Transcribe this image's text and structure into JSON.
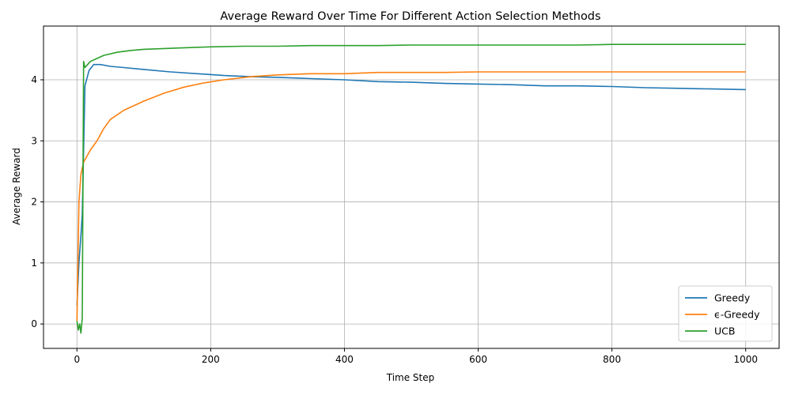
{
  "chart_data": {
    "type": "line",
    "title": "Average Reward Over Time For Different Action Selection Methods",
    "xlabel": "Time Step",
    "ylabel": "Average Reward",
    "xlim": [
      -50,
      1050
    ],
    "ylim": [
      -0.4,
      4.88
    ],
    "xticks": [
      0,
      200,
      400,
      600,
      800,
      1000
    ],
    "yticks": [
      0,
      1,
      2,
      3,
      4
    ],
    "grid": true,
    "legend_position": "lower right",
    "series": [
      {
        "name": "Greedy",
        "color": "#1f77b4",
        "x": [
          0,
          3,
          6,
          8,
          12,
          18,
          25,
          35,
          50,
          70,
          100,
          140,
          180,
          220,
          260,
          300,
          350,
          400,
          450,
          500,
          550,
          600,
          650,
          700,
          750,
          800,
          850,
          900,
          950,
          1000
        ],
        "y": [
          0.3,
          1.0,
          1.45,
          1.8,
          3.9,
          4.15,
          4.25,
          4.25,
          4.22,
          4.2,
          4.17,
          4.13,
          4.1,
          4.07,
          4.05,
          4.04,
          4.02,
          4.0,
          3.97,
          3.96,
          3.94,
          3.93,
          3.92,
          3.9,
          3.9,
          3.89,
          3.87,
          3.86,
          3.85,
          3.84
        ]
      },
      {
        "name": "ϵ-Greedy",
        "color": "#ff7f0e",
        "x": [
          0,
          3,
          6,
          10,
          15,
          20,
          30,
          40,
          50,
          70,
          100,
          130,
          160,
          190,
          220,
          260,
          300,
          350,
          400,
          450,
          500,
          550,
          600,
          650,
          700,
          750,
          800,
          850,
          900,
          950,
          1000
        ],
        "y": [
          0.05,
          2.0,
          2.45,
          2.65,
          2.75,
          2.85,
          3.0,
          3.2,
          3.35,
          3.5,
          3.65,
          3.78,
          3.88,
          3.95,
          4.0,
          4.05,
          4.08,
          4.1,
          4.1,
          4.12,
          4.12,
          4.12,
          4.13,
          4.13,
          4.13,
          4.13,
          4.13,
          4.13,
          4.13,
          4.13,
          4.13
        ]
      },
      {
        "name": "UCB",
        "color": "#2ca02c",
        "x": [
          0,
          2,
          4,
          6,
          8,
          10,
          12,
          20,
          30,
          40,
          60,
          80,
          100,
          150,
          200,
          250,
          300,
          350,
          400,
          450,
          500,
          550,
          600,
          650,
          700,
          750,
          800,
          850,
          900,
          950,
          1000
        ],
        "y": [
          0.05,
          -0.1,
          0.0,
          -0.15,
          0.1,
          4.3,
          4.2,
          4.3,
          4.35,
          4.4,
          4.45,
          4.48,
          4.5,
          4.52,
          4.54,
          4.55,
          4.55,
          4.56,
          4.56,
          4.56,
          4.57,
          4.57,
          4.57,
          4.57,
          4.57,
          4.57,
          4.58,
          4.58,
          4.58,
          4.58,
          4.58
        ]
      }
    ]
  }
}
